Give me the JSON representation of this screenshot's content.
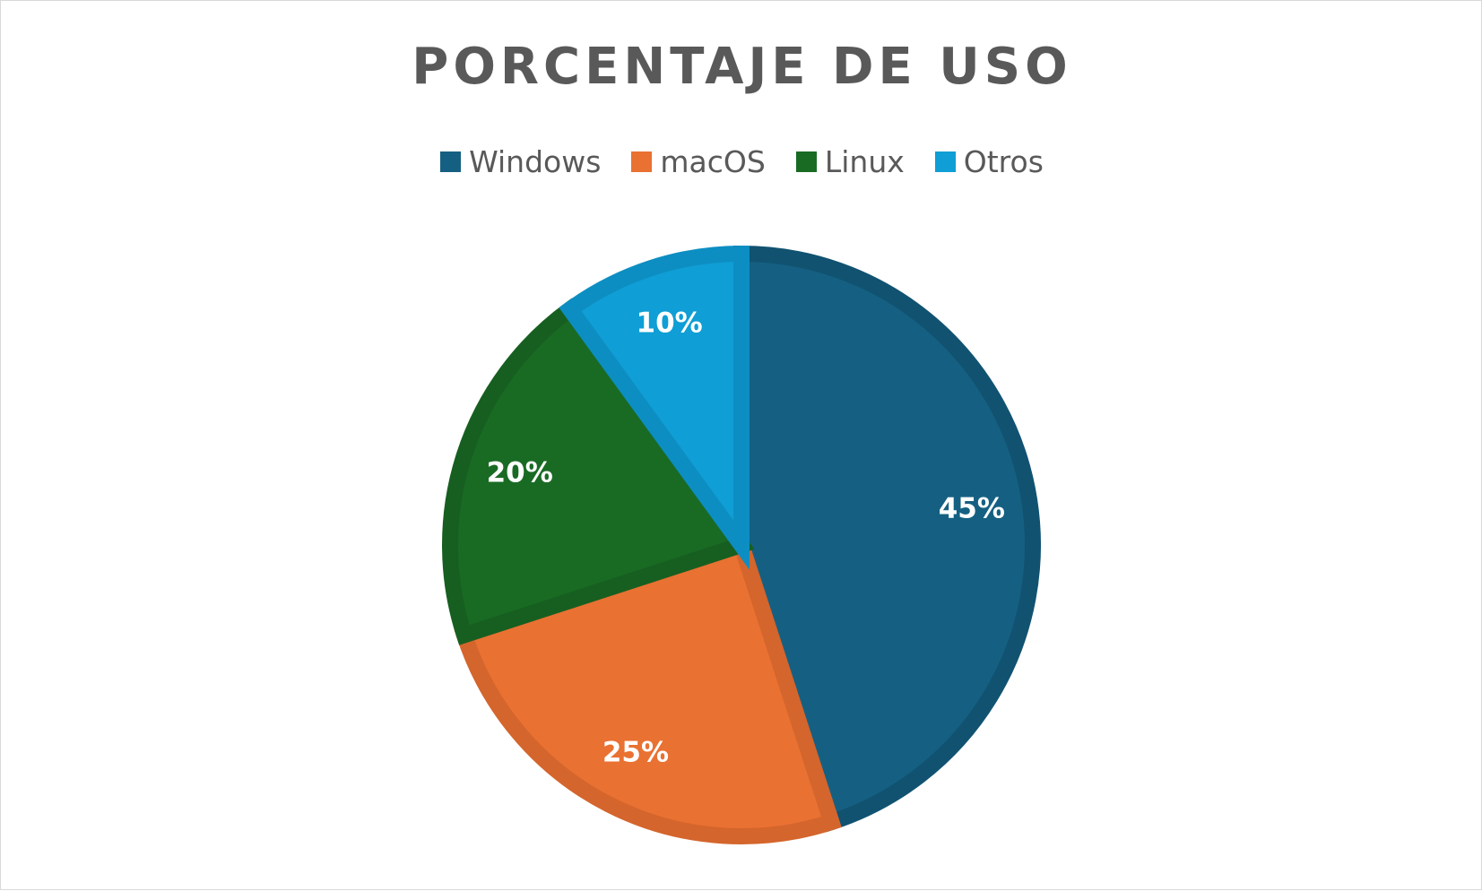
{
  "chart_data": {
    "type": "pie",
    "title": "PORCENTAJE DE USO",
    "legend_position": "top",
    "categories": [
      "Windows",
      "macOS",
      "Linux",
      "Otros"
    ],
    "values": [
      45,
      25,
      20,
      10
    ],
    "data_labels": [
      "45%",
      "25%",
      "20%",
      "10%"
    ],
    "colors": [
      "#156082",
      "#E97132",
      "#196B24",
      "#0F9ED5"
    ],
    "border_colors": [
      "#115271",
      "#D4652C",
      "#175F20",
      "#0D8EC2"
    ],
    "start_angle_deg": 0,
    "direction": "clockwise"
  }
}
